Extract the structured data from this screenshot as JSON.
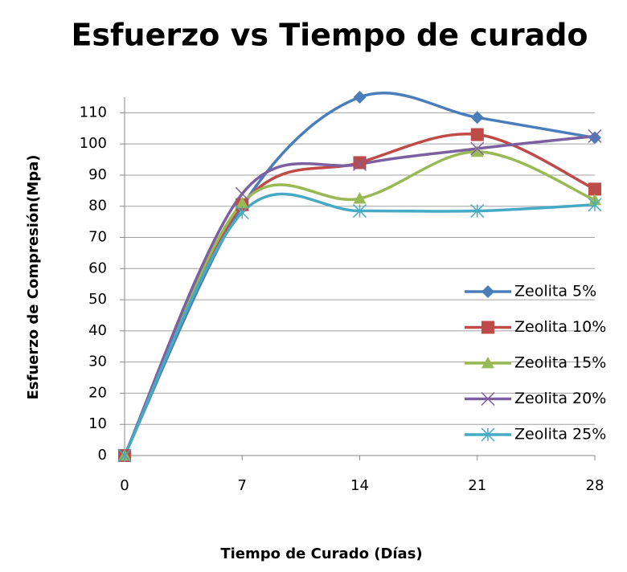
{
  "chart_data": {
    "type": "line",
    "title": "Esfuerzo vs Tiempo de curado",
    "x_label": "Tiempo de Curado (Días)",
    "y_label": "Esfuerzo de Compresión(Mpa)",
    "x": [
      0,
      7,
      14,
      21,
      28
    ],
    "xlim": [
      0,
      28
    ],
    "xticks": [
      0,
      7,
      14,
      21,
      28
    ],
    "ylim": [
      0,
      115
    ],
    "yticks": [
      0,
      10,
      20,
      30,
      40,
      50,
      60,
      70,
      80,
      90,
      100,
      110
    ],
    "grid": true,
    "smooth": true,
    "legend": "lower right",
    "series": [
      {
        "name": "Zeolita 5%",
        "color": "#4a7ebb",
        "marker": "diamond",
        "values": [
          0,
          80,
          115,
          108.5,
          102
        ]
      },
      {
        "name": "Zeolita 10%",
        "color": "#be4b48",
        "marker": "square",
        "values": [
          0,
          80.5,
          94,
          103,
          85.5
        ]
      },
      {
        "name": "Zeolita 15%",
        "color": "#98b954",
        "marker": "triangle",
        "values": [
          0,
          81,
          82.5,
          97.5,
          82
        ]
      },
      {
        "name": "Zeolita 20%",
        "color": "#7d60a0",
        "marker": "x",
        "values": [
          0,
          84,
          93.5,
          98.5,
          102.5
        ]
      },
      {
        "name": "Zeolita 25%",
        "color": "#46aac5",
        "marker": "star",
        "values": [
          0,
          78,
          78.5,
          78.5,
          80.5
        ]
      }
    ]
  }
}
